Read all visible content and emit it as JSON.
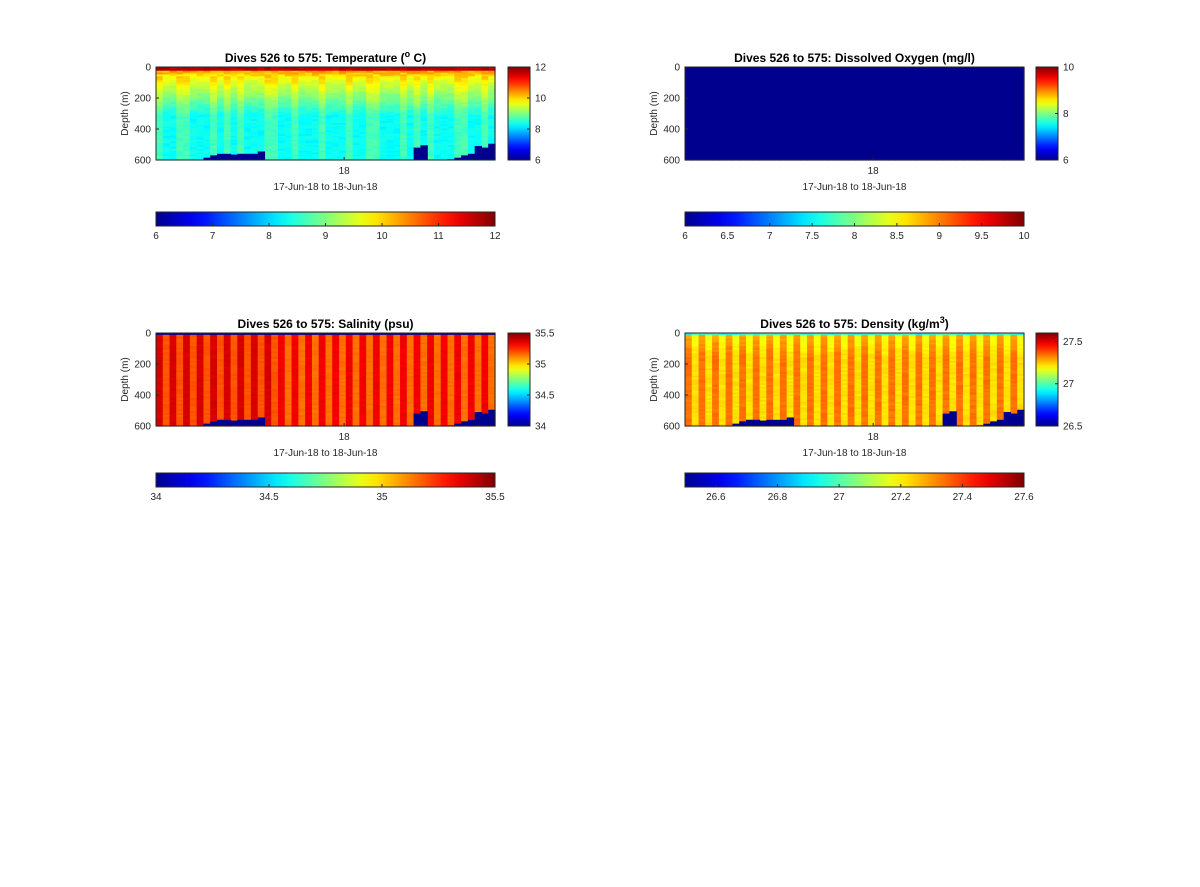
{
  "chart_data": [
    {
      "type": "heatmap",
      "variable": "temperature",
      "title": "Dives 526 to 575: Temperature (",
      "title_sup": "o",
      "title_tail": " C)",
      "ylabel": "Depth (m)",
      "xtick_label": "18",
      "xlabel": "17-Jun-18 to 18-Jun-18",
      "ylim": [
        0,
        600
      ],
      "yticks": [
        0,
        200,
        400,
        600
      ],
      "clim": [
        6,
        12
      ],
      "side_colorbar_ticks": [
        6,
        8,
        10,
        12
      ],
      "bottom_colorbar_ticks": [
        6,
        7,
        8,
        9,
        10,
        11,
        12
      ],
      "n_dives": 50,
      "surface_value": 11.8,
      "near_surface_value": 10.4,
      "deep_value": 8.3,
      "bottom_depth_m": [
        600,
        600,
        600,
        600,
        600,
        600,
        600,
        600,
        600,
        600,
        600,
        600,
        600,
        600,
        600,
        600,
        600,
        600,
        600,
        600,
        600,
        600,
        600,
        600,
        600,
        600,
        600,
        600,
        600,
        600,
        600,
        600,
        600,
        600,
        600,
        600,
        600,
        600,
        600,
        600,
        600,
        600,
        600,
        600,
        600,
        600,
        600,
        600,
        600,
        600
      ]
    },
    {
      "type": "heatmap",
      "variable": "oxygen",
      "title": "Dives 526 to 575: Dissolved Oxygen (mg/l)",
      "title_sup": "",
      "title_tail": "",
      "ylabel": "Depth (m)",
      "xtick_label": "18",
      "xlabel": "17-Jun-18 to 18-Jun-18",
      "ylim": [
        0,
        600
      ],
      "yticks": [
        0,
        200,
        400,
        600
      ],
      "clim": [
        6,
        10
      ],
      "side_colorbar_ticks": [
        6,
        8,
        10
      ],
      "bottom_colorbar_ticks": [
        6,
        6.5,
        7,
        7.5,
        8,
        8.5,
        9,
        9.5,
        10
      ],
      "n_dives": 50,
      "uniform_value": 6
    },
    {
      "type": "heatmap",
      "variable": "salinity",
      "title": "Dives 526 to 575: Salinity (psu)",
      "title_sup": "",
      "title_tail": "",
      "ylabel": "Depth (m)",
      "xtick_label": "18",
      "xlabel": "17-Jun-18 to 18-Jun-18",
      "ylim": [
        0,
        600
      ],
      "yticks": [
        0,
        200,
        400,
        600
      ],
      "clim": [
        34,
        35.5
      ],
      "side_colorbar_ticks": [
        34,
        34.5,
        35,
        35.5
      ],
      "bottom_colorbar_ticks": [
        34,
        34.5,
        35,
        35.5
      ],
      "n_dives": 50,
      "column_value": 35.33,
      "gap_value": 35.15,
      "surface_value": 34.0,
      "bottom_depth_m": [
        600,
        600,
        600,
        600,
        600,
        600,
        600,
        600,
        600,
        600,
        600,
        600,
        600,
        600,
        600,
        600,
        600,
        600,
        600,
        600,
        600,
        600,
        600,
        600,
        600,
        600,
        600,
        600,
        600,
        600,
        600,
        600,
        600,
        600,
        600,
        600,
        600,
        600,
        600,
        600,
        600,
        600,
        600,
        600,
        600,
        600,
        600,
        600,
        600,
        600
      ]
    },
    {
      "type": "heatmap",
      "variable": "density",
      "title": "Dives 526 to 575: Density (kg/m",
      "title_sup": "3",
      "title_tail": ")",
      "ylabel": "Depth (m)",
      "xtick_label": "18",
      "xlabel": "17-Jun-18 to 18-Jun-18",
      "ylim": [
        0,
        600
      ],
      "yticks": [
        0,
        200,
        400,
        600
      ],
      "clim": [
        26.5,
        27.6
      ],
      "side_colorbar_ticks": [
        26.5,
        27,
        27.5
      ],
      "bottom_colorbar_ticks": [
        26.6,
        26.8,
        27,
        27.2,
        27.4,
        27.6
      ],
      "n_dives": 50,
      "column_value": 27.34,
      "gap_value": 27.22,
      "surface_value": 26.95,
      "bottom_depth_m": [
        600,
        600,
        600,
        600,
        600,
        600,
        600,
        600,
        600,
        600,
        600,
        600,
        600,
        600,
        600,
        600,
        600,
        600,
        600,
        600,
        600,
        600,
        600,
        600,
        600,
        600,
        600,
        600,
        600,
        600,
        600,
        600,
        600,
        600,
        600,
        600,
        600,
        600,
        600,
        600,
        600,
        600,
        600,
        600,
        600,
        600,
        600,
        600,
        600,
        600
      ]
    }
  ],
  "seabed_depth_m": [
    600,
    600,
    600,
    600,
    600,
    600,
    600,
    585,
    570,
    560,
    560,
    565,
    560,
    560,
    560,
    545,
    600,
    600,
    600,
    600,
    600,
    600,
    600,
    600,
    600,
    600,
    600,
    600,
    600,
    600,
    600,
    600,
    600,
    600,
    600,
    600,
    600,
    600,
    520,
    505,
    600,
    600,
    600,
    595,
    585,
    570,
    560,
    510,
    520,
    495
  ],
  "colors": {
    "colormap_stops": [
      "#00008f",
      "#0000ff",
      "#00ffff",
      "#ffff00",
      "#ff0000",
      "#800000"
    ],
    "seabed": "#00008f",
    "background": "#ffffff",
    "axis": "#262626"
  }
}
